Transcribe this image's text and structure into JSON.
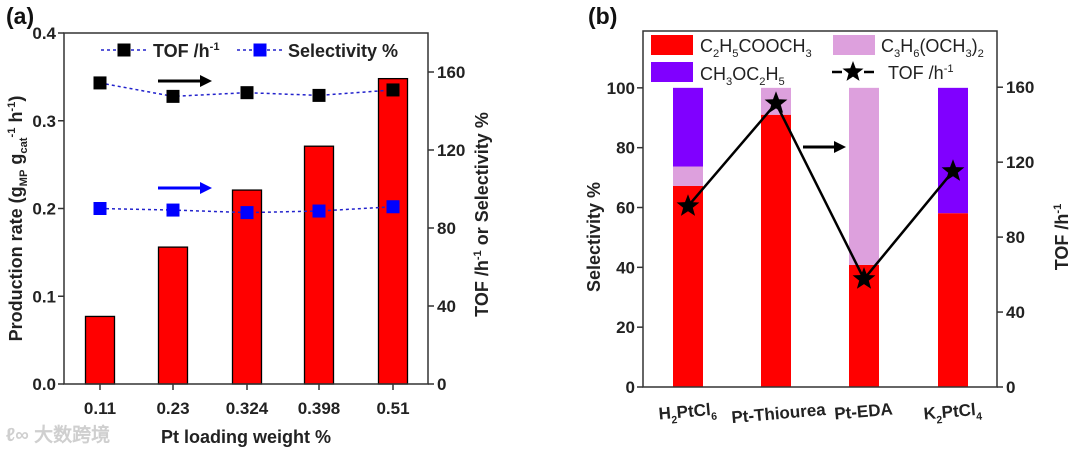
{
  "colors": {
    "red": "#ff0000",
    "pink": "#dda0dd",
    "purple": "#8000ff",
    "blue": "#0000ff",
    "black": "#000000",
    "dotted_line": "#2222cc"
  },
  "watermark": "大数跨境",
  "chart_data": [
    {
      "panel_label": "(a)",
      "type": "bar+line",
      "categories": [
        "0.11",
        "0.23",
        "0.324",
        "0.398",
        "0.51"
      ],
      "xlabel": "Pt loading weight %",
      "ylabel": "Production rate (g_{MP} g_{cat}^{-1} h^{-1})",
      "ylabel_right": "TOF /h^{-1} or Selectivity %",
      "ylim": [
        0,
        0.4
      ],
      "yticks": [
        "0.0",
        "0.1",
        "0.2",
        "0.3",
        "0.4"
      ],
      "ylim_right": [
        0,
        180
      ],
      "yticks_right": [
        "0",
        "40",
        "80",
        "120",
        "160"
      ],
      "bars": {
        "name": "Production rate",
        "values": [
          0.077,
          0.156,
          0.221,
          0.271,
          0.348
        ]
      },
      "series": [
        {
          "name": "TOF /h^{-1}",
          "axis": "right",
          "marker": "square",
          "color": "#000000",
          "values": [
            154.4,
            147.5,
            149.4,
            148.0,
            150.8
          ]
        },
        {
          "name": "Selectivity %",
          "axis": "right",
          "marker": "square",
          "color": "#0000ff",
          "values": [
            90.0,
            89.2,
            87.9,
            88.7,
            90.9
          ]
        }
      ],
      "legend_position": "top"
    },
    {
      "panel_label": "(b)",
      "type": "stacked-bar+line",
      "categories": [
        "H_{2}PtCl_{6}",
        "Pt-Thiourea",
        "Pt-EDA",
        "K_{2}PtCl_{4}"
      ],
      "ylabel": "Selectivity %",
      "ylabel_right": "TOF /h^{-1}",
      "ylim": [
        0,
        119
      ],
      "yticks": [
        "0",
        "20",
        "40",
        "60",
        "80",
        "100"
      ],
      "ylim_right": [
        0,
        190
      ],
      "yticks_right": [
        "0",
        "40",
        "80",
        "120",
        "160"
      ],
      "stacks": [
        {
          "name": "C_{2}H_{5}COOCH_{3}",
          "color": "#ff0000",
          "values": [
            67.2,
            91.0,
            40.8,
            58.1
          ]
        },
        {
          "name": "C_{3}H_{6}(OCH_{3})_{2}",
          "color": "#dda0dd",
          "values": [
            6.5,
            9.0,
            59.2,
            0
          ]
        },
        {
          "name": "CH_{3}OC_{2}H_{5}",
          "color": "#8000ff",
          "values": [
            26.3,
            0,
            0,
            41.9
          ]
        }
      ],
      "series": [
        {
          "name": "TOF /h^{-1}",
          "axis": "right",
          "marker": "star",
          "color": "#000000",
          "values": [
            96.5,
            151.4,
            57.6,
            115.2
          ]
        }
      ],
      "legend_position": "top"
    }
  ]
}
